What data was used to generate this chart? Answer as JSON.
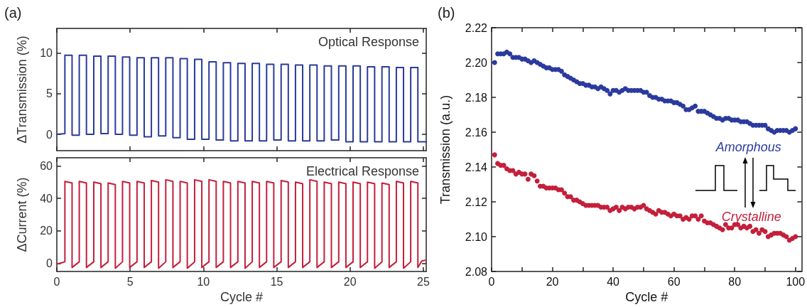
{
  "chart_data": [
    {
      "type": "line",
      "title": "Optical Response",
      "ylabel": "ΔTransmission (%)",
      "annotations": [
        "(a)"
      ],
      "xlim": [
        0,
        25.2
      ],
      "xticks": [
        0,
        5,
        10,
        15,
        20,
        25
      ],
      "ylim": [
        -2,
        13
      ],
      "yticks": [
        0,
        5,
        10
      ],
      "tick_labels": "y",
      "grid": false,
      "legend": false,
      "marker": "none",
      "line_style": "solid",
      "x": [
        0,
        0.55,
        0.55,
        1.04,
        1.04,
        1.53,
        1.53,
        2.02,
        2.02,
        2.52,
        2.52,
        3.01,
        3.01,
        3.5,
        3.5,
        3.99,
        3.99,
        4.48,
        4.48,
        4.97,
        4.97,
        5.47,
        5.47,
        5.96,
        5.96,
        6.45,
        6.45,
        6.94,
        6.94,
        7.43,
        7.43,
        7.92,
        7.92,
        8.41,
        8.41,
        8.9,
        8.9,
        9.4,
        9.4,
        9.89,
        9.89,
        10.38,
        10.38,
        10.87,
        10.87,
        11.36,
        11.36,
        11.85,
        11.85,
        12.35,
        12.35,
        12.84,
        12.84,
        13.33,
        13.33,
        13.82,
        13.82,
        14.31,
        14.31,
        14.8,
        14.8,
        15.3,
        15.3,
        15.79,
        15.79,
        16.28,
        16.28,
        16.77,
        16.77,
        17.26,
        17.26,
        17.75,
        17.75,
        18.24,
        18.24,
        18.73,
        18.73,
        19.23,
        19.23,
        19.72,
        19.72,
        20.21,
        20.21,
        20.7,
        20.7,
        21.19,
        21.19,
        21.68,
        21.68,
        22.18,
        22.18,
        22.67,
        22.67,
        23.16,
        23.16,
        23.65,
        23.65,
        24.14,
        24.14,
        24.63,
        24.63,
        25.2
      ],
      "series": [
        {
          "color": "#2a3a9c",
          "values": [
            0,
            0.1,
            9.7,
            9.7,
            -0.1,
            -0.1,
            9.7,
            9.7,
            0,
            0,
            9.6,
            9.6,
            0.1,
            0.1,
            9.6,
            9.6,
            0,
            0,
            9.5,
            9.5,
            -0.1,
            -0.1,
            9.4,
            9.4,
            -0.3,
            -0.3,
            9.4,
            9.4,
            -0.2,
            -0.2,
            9.4,
            9.4,
            -0.4,
            -0.4,
            9.3,
            9.3,
            -0.6,
            -0.6,
            9.2,
            9.2,
            -0.6,
            -0.6,
            8.9,
            8.9,
            -0.7,
            -0.7,
            8.8,
            8.8,
            -0.8,
            -0.8,
            8.7,
            8.7,
            -0.8,
            -0.8,
            8.7,
            8.7,
            -0.8,
            -0.8,
            8.6,
            8.6,
            -0.7,
            -0.7,
            8.6,
            8.6,
            -0.8,
            -0.8,
            8.5,
            8.5,
            -0.8,
            -0.8,
            8.5,
            8.5,
            -0.8,
            -0.8,
            8.4,
            8.4,
            -0.7,
            -0.7,
            8.4,
            8.4,
            -0.9,
            -0.9,
            8.4,
            8.4,
            -0.9,
            -0.9,
            8.3,
            8.3,
            -0.9,
            -0.9,
            8.3,
            8.3,
            -0.9,
            -0.9,
            8.2,
            8.2,
            -0.9,
            -0.9,
            8.2,
            8.2,
            -0.9,
            -0.9
          ]
        }
      ]
    },
    {
      "type": "line",
      "title": "Electrical Response",
      "xlabel": "Cycle #",
      "ylabel": "ΔCurrent (%)",
      "xlim": [
        0,
        25.2
      ],
      "xticks": [
        0,
        5,
        10,
        15,
        20,
        25
      ],
      "ylim": [
        -5,
        65
      ],
      "yticks": [
        0,
        20,
        40,
        60
      ],
      "grid": false,
      "legend": false,
      "marker": "none",
      "line_style": "solid",
      "x": [
        0,
        0.55,
        0.55,
        1.04,
        1.04,
        1.53,
        1.53,
        2.02,
        2.02,
        2.52,
        2.52,
        3.01,
        3.01,
        3.5,
        3.5,
        3.99,
        3.99,
        4.48,
        4.48,
        4.97,
        4.97,
        5.47,
        5.47,
        5.96,
        5.96,
        6.45,
        6.45,
        6.94,
        6.94,
        7.43,
        7.43,
        7.92,
        7.92,
        8.41,
        8.41,
        8.9,
        8.9,
        9.4,
        9.4,
        9.89,
        9.89,
        10.38,
        10.38,
        10.87,
        10.87,
        11.36,
        11.36,
        11.85,
        11.85,
        12.35,
        12.35,
        12.84,
        12.84,
        13.33,
        13.33,
        13.82,
        13.82,
        14.31,
        14.31,
        14.8,
        14.8,
        15.3,
        15.3,
        15.79,
        15.79,
        16.28,
        16.28,
        16.77,
        16.77,
        17.26,
        17.26,
        17.75,
        17.75,
        18.24,
        18.24,
        18.73,
        18.73,
        19.23,
        19.23,
        19.72,
        19.72,
        20.21,
        20.21,
        20.7,
        20.7,
        21.19,
        21.19,
        21.68,
        21.68,
        22.18,
        22.18,
        22.67,
        22.67,
        23.16,
        23.16,
        23.65,
        23.65,
        24.14,
        24.14,
        24.63,
        24.63,
        24.9,
        25.2
      ],
      "series": [
        {
          "color": "#c41f3b",
          "values": [
            -0.5,
            1,
            50.5,
            49.5,
            -2.5,
            1,
            50.5,
            49.5,
            -2.5,
            1,
            50,
            49,
            -2.5,
            1,
            49.5,
            48.5,
            -3,
            1,
            50.5,
            49.5,
            -2.5,
            1,
            50.5,
            49.5,
            -2.5,
            1,
            51,
            50,
            -3,
            1,
            51.5,
            50.5,
            -2.5,
            1,
            50.5,
            49.5,
            -3,
            1,
            51.5,
            50.5,
            -2.5,
            1,
            51.5,
            50.5,
            -2.5,
            1,
            50.5,
            49.5,
            -2.5,
            1,
            50.5,
            49.5,
            -3,
            1,
            50.5,
            49.5,
            -2.5,
            1,
            50.5,
            49.5,
            -2.5,
            1,
            51,
            50,
            -2.5,
            1,
            50,
            49,
            -2.5,
            1,
            51.5,
            50.5,
            -2.5,
            1,
            50,
            49,
            -2.5,
            1,
            50,
            49,
            -2.5,
            1,
            50,
            49,
            -2.5,
            1,
            50,
            49,
            -3,
            1,
            49.5,
            48.5,
            -2.5,
            1,
            50.5,
            49.5,
            -3,
            1,
            50.5,
            49.5,
            -2.5,
            1.5,
            2
          ]
        }
      ]
    },
    {
      "type": "scatter",
      "xlabel": "Cycle #",
      "ylabel": "Transmission (a.u.)",
      "annotations": [
        "(b)"
      ],
      "xlim": [
        0,
        102
      ],
      "xticks": [
        0,
        {
          "value": 10,
          "label": null
        },
        20,
        {
          "value": 30,
          "label": null
        },
        40,
        {
          "value": 50,
          "label": null
        },
        60,
        {
          "value": 70,
          "label": null
        },
        80,
        {
          "value": 90,
          "label": null
        },
        100
      ],
      "ylim": [
        2.08,
        2.22
      ],
      "yticks": [
        2.08,
        {
          "value": 2.1,
          "label": "2.10"
        },
        2.12,
        2.14,
        2.16,
        2.18,
        {
          "value": 2.2,
          "label": "2.20"
        },
        2.22
      ],
      "grid": false,
      "legend": false,
      "marker": "circle",
      "x": [
        1,
        2,
        3,
        4,
        5,
        6,
        7,
        8,
        9,
        10,
        11,
        12,
        13,
        14,
        15,
        16,
        17,
        18,
        19,
        20,
        21,
        22,
        23,
        24,
        25,
        26,
        27,
        28,
        29,
        30,
        31,
        32,
        33,
        34,
        35,
        36,
        37,
        38,
        39,
        40,
        41,
        42,
        43,
        44,
        45,
        46,
        47,
        48,
        49,
        50,
        51,
        52,
        53,
        54,
        55,
        56,
        57,
        58,
        59,
        60,
        61,
        62,
        63,
        64,
        65,
        66,
        67,
        68,
        69,
        70,
        71,
        72,
        73,
        74,
        75,
        76,
        77,
        78,
        79,
        80,
        81,
        82,
        83,
        84,
        85,
        86,
        87,
        88,
        89,
        90,
        91,
        92,
        93,
        94,
        95,
        96,
        97,
        98,
        99,
        100
      ],
      "series": [
        {
          "name": "Amorphous",
          "color": "#2b3a9e",
          "values": [
            2.2,
            2.205,
            2.205,
            2.205,
            2.206,
            2.205,
            2.203,
            2.203,
            2.203,
            2.202,
            2.202,
            2.201,
            2.2,
            2.201,
            2.2,
            2.199,
            2.198,
            2.197,
            2.197,
            2.196,
            2.196,
            2.196,
            2.195,
            2.193,
            2.192,
            2.191,
            2.19,
            2.189,
            2.188,
            2.188,
            2.187,
            2.187,
            2.186,
            2.186,
            2.185,
            2.186,
            2.185,
            2.184,
            2.182,
            2.184,
            2.184,
            2.183,
            2.184,
            2.185,
            2.184,
            2.184,
            2.184,
            2.184,
            2.184,
            2.183,
            2.183,
            2.181,
            2.18,
            2.18,
            2.179,
            2.179,
            2.178,
            2.178,
            2.178,
            2.177,
            2.177,
            2.176,
            2.175,
            2.173,
            2.173,
            2.174,
            2.175,
            2.172,
            2.172,
            2.172,
            2.171,
            2.17,
            2.169,
            2.168,
            2.168,
            2.167,
            2.168,
            2.168,
            2.167,
            2.167,
            2.167,
            2.166,
            2.166,
            2.166,
            2.165,
            2.164,
            2.164,
            2.164,
            2.164,
            2.164,
            2.162,
            2.161,
            2.16,
            2.161,
            2.161,
            2.161,
            2.161,
            2.16,
            2.161,
            2.162
          ]
        },
        {
          "name": "Crystalline",
          "color": "#c41f3b",
          "values": [
            2.147,
            2.142,
            2.141,
            2.141,
            2.139,
            2.138,
            2.138,
            2.136,
            2.137,
            2.136,
            2.136,
            2.133,
            2.136,
            2.135,
            2.132,
            2.129,
            2.129,
            2.128,
            2.128,
            2.128,
            2.128,
            2.127,
            2.127,
            2.125,
            2.123,
            2.123,
            2.121,
            2.121,
            2.12,
            2.119,
            2.118,
            2.118,
            2.118,
            2.118,
            2.118,
            2.117,
            2.117,
            2.117,
            2.115,
            2.116,
            2.117,
            2.115,
            2.117,
            2.116,
            2.117,
            2.117,
            2.116,
            2.117,
            2.117,
            2.118,
            2.116,
            2.115,
            2.114,
            2.113,
            2.115,
            2.114,
            2.114,
            2.113,
            2.112,
            2.113,
            2.112,
            2.112,
            2.11,
            2.111,
            2.11,
            2.112,
            2.112,
            2.11,
            2.112,
            2.109,
            2.108,
            2.108,
            2.107,
            2.106,
            2.105,
            2.104,
            2.107,
            2.105,
            2.105,
            2.107,
            2.107,
            2.105,
            2.106,
            2.105,
            2.106,
            2.103,
            2.104,
            2.102,
            2.104,
            2.103,
            2.1,
            2.101,
            2.102,
            2.102,
            2.102,
            2.101,
            2.1,
            2.098,
            2.099,
            2.1
          ]
        }
      ]
    }
  ]
}
